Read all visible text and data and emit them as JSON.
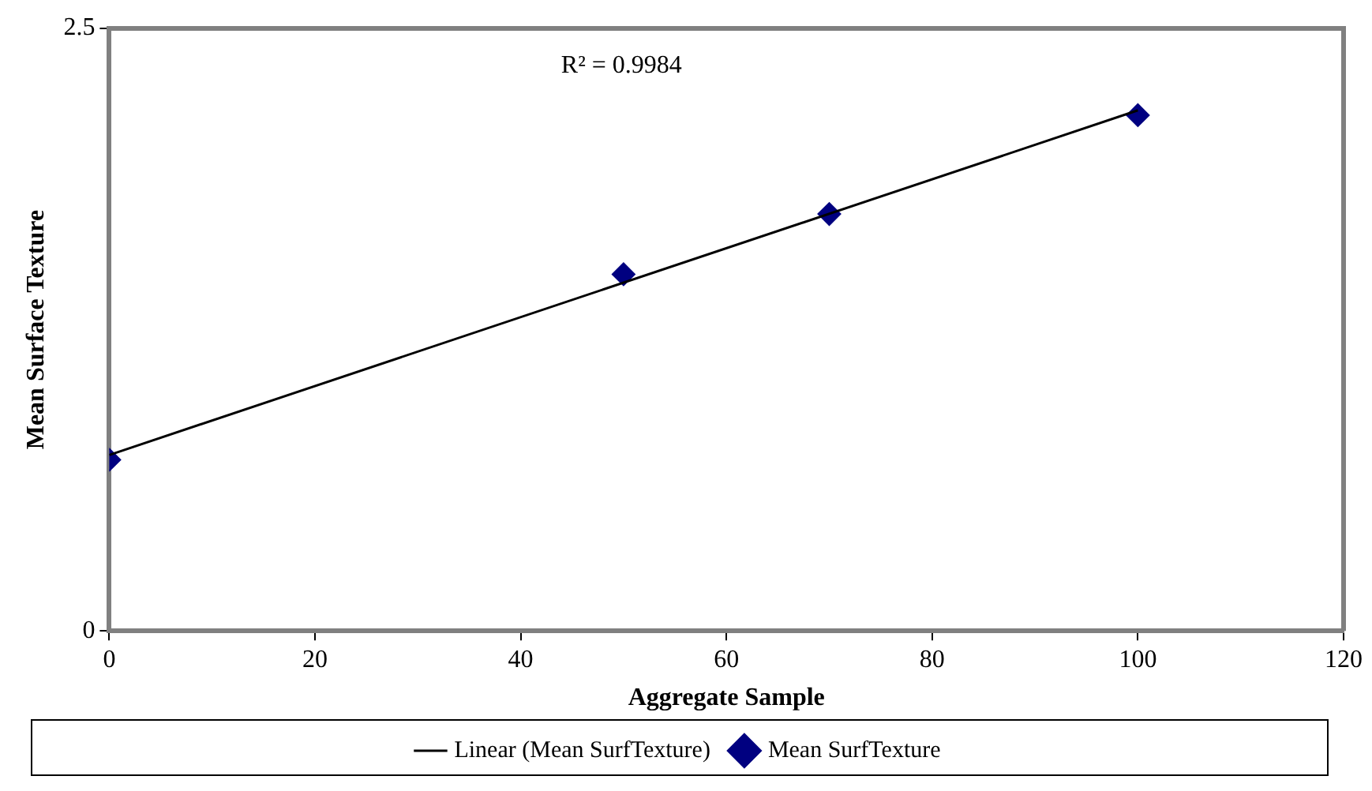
{
  "chart_data": {
    "type": "scatter",
    "xlabel": "Aggregate Sample",
    "ylabel": "Mean Surface Texture",
    "x": [
      0,
      50,
      70,
      100
    ],
    "series": [
      {
        "name": "Mean SurfTexture",
        "color": "#000080",
        "values": [
          0.71,
          1.48,
          1.73,
          2.14
        ],
        "marker": "diamond"
      },
      {
        "name": "Linear (Mean SurfTexture)",
        "type": "line",
        "color": "#000000",
        "x": [
          0,
          100
        ],
        "values": [
          0.73,
          2.16
        ],
        "marker": "none"
      }
    ],
    "xlim": [
      0,
      120
    ],
    "xticks": [
      0,
      20,
      40,
      60,
      80,
      100,
      120
    ],
    "ylim": [
      0,
      2.5
    ],
    "yticks": [
      0,
      2.5
    ],
    "annotations": [
      "R² = 0.9984"
    ],
    "grid": false,
    "legend": "bottom"
  }
}
